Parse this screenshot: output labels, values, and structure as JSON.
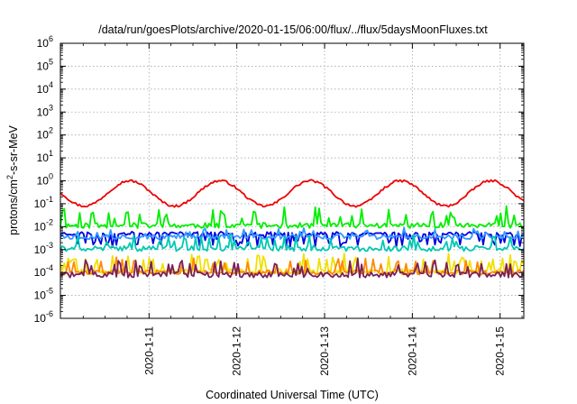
{
  "chart_data": {
    "type": "line",
    "title": "/data/run/goesPlots/archive/2020-01-15/06:00/flux/../flux/5daysMoonFluxes.txt",
    "xlabel": "Coordinated Universal Time (UTC)",
    "ylabel": {
      "base": "protons/cm",
      "sup": "2",
      "rest": "-s-sr-MeV"
    },
    "yscale": "log",
    "ylim_exp": [
      -6,
      6
    ],
    "xlim_days": [
      -1.01,
      4.27
    ],
    "x_ticks": [
      {
        "label": "2020-1-11",
        "day": 0
      },
      {
        "label": "2020-1-12",
        "day": 1
      },
      {
        "label": "2020-1-13",
        "day": 2
      },
      {
        "label": "2020-1-14",
        "day": 3
      },
      {
        "label": "2020-1-15",
        "day": 4
      }
    ],
    "grid": true,
    "series": [
      {
        "color": "#ee0000",
        "kind": "smooth",
        "base": -0.55,
        "amp": 0.55,
        "noise": 0.05,
        "period": 1.03,
        "phase": 0.55
      },
      {
        "color": "#00ee00",
        "kind": "spiky",
        "base": -1.95,
        "spread": 0.12,
        "spike": 0.75,
        "prob": 0.18,
        "seed": 11
      },
      {
        "color": "#0000dd",
        "kind": "spiky",
        "base": -2.3,
        "spread": 0.08,
        "spike": -0.55,
        "prob": 0.22,
        "seed": 23
      },
      {
        "color": "#3399ff",
        "kind": "spiky",
        "base": -2.45,
        "spread": 0.1,
        "spike": 0.35,
        "prob": 0.14,
        "seed": 37
      },
      {
        "color": "#00c8b4",
        "kind": "spiky",
        "base": -2.95,
        "spread": 0.12,
        "spike": 0.55,
        "prob": 0.16,
        "seed": 41
      },
      {
        "color": "#f0e000",
        "kind": "spiky",
        "base": -3.95,
        "spread": 0.12,
        "spike": 0.7,
        "prob": 0.2,
        "seed": 53
      },
      {
        "color": "#ff8800",
        "kind": "spiky",
        "base": -4.0,
        "spread": 0.1,
        "spike": 0.6,
        "prob": 0.15,
        "seed": 61
      },
      {
        "color": "#7a1f5a",
        "kind": "spiky",
        "base": -4.1,
        "spread": 0.12,
        "spike": 0.65,
        "prob": 0.2,
        "seed": 71
      }
    ]
  }
}
